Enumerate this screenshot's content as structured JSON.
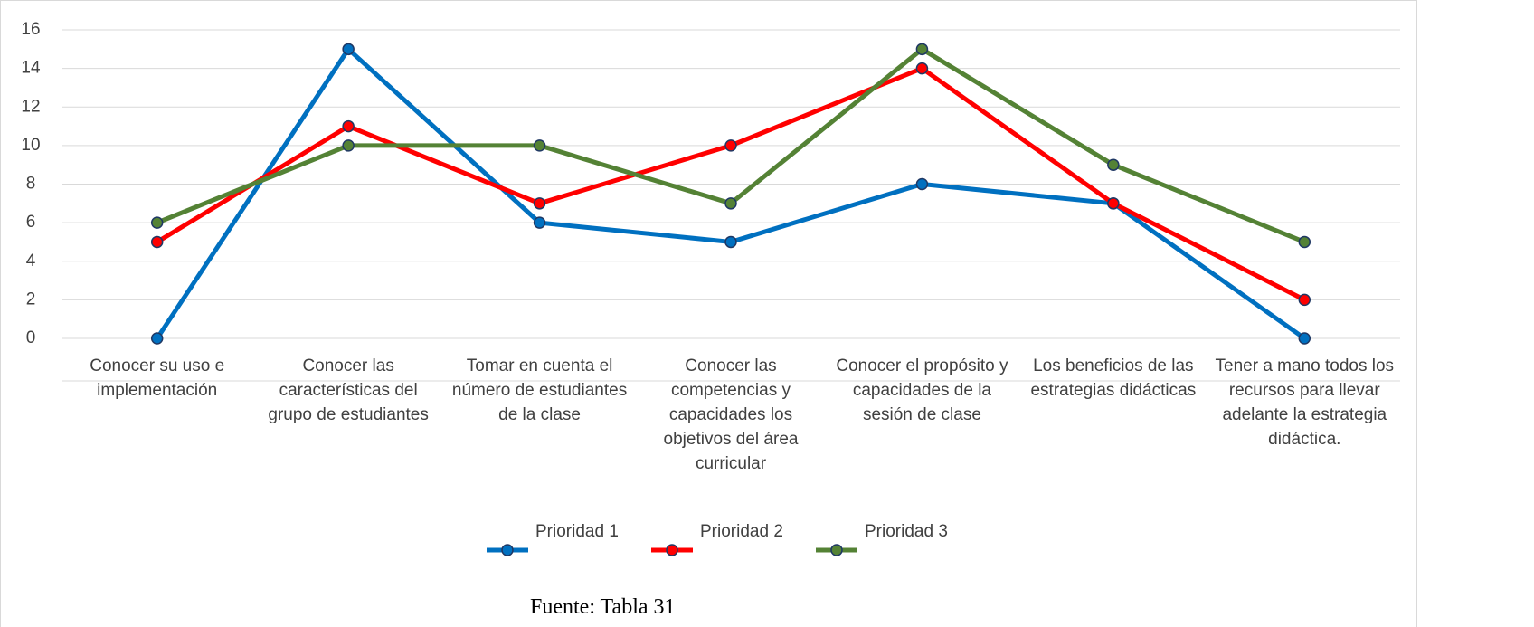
{
  "chart_data": {
    "type": "line",
    "categories": [
      "Conocer su uso e implementación",
      "Conocer las características del grupo de estudiantes",
      "Tomar en cuenta el número de estudiantes de la clase",
      "Conocer las competencias y capacidades los objetivos del área curricular",
      "Conocer el propósito y capacidades de la sesión de clase",
      "Los beneficios de las estrategias didácticas",
      "Tener a mano todos los recursos para llevar adelante la estrategia didáctica."
    ],
    "series": [
      {
        "name": "Prioridad 1",
        "color": "#0070c0",
        "values": [
          0,
          15,
          6,
          5,
          8,
          7,
          0
        ]
      },
      {
        "name": "Prioridad 2",
        "color": "#ff0000",
        "values": [
          5,
          11,
          7,
          10,
          14,
          7,
          2
        ]
      },
      {
        "name": "Prioridad 3",
        "color": "#548235",
        "values": [
          6,
          10,
          10,
          7,
          15,
          9,
          5
        ]
      }
    ],
    "ylim": [
      0,
      16
    ],
    "yticks": [
      0,
      2,
      4,
      6,
      8,
      10,
      12,
      14,
      16
    ],
    "grid": true,
    "legend": "bottom",
    "source": "Fuente: Tabla 31"
  }
}
